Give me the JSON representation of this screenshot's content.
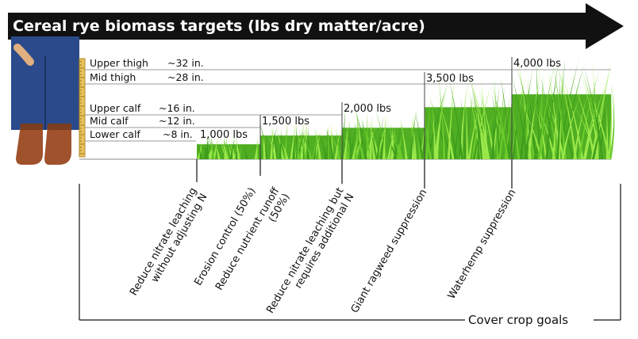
{
  "title": "Cereal rye biomass targets  (lbs dry matter/acre)",
  "height_markers": [
    {
      "label": "Upper thigh",
      "value": "~32 in."
    },
    {
      "label": "Mid thigh",
      "value": "~28 in."
    },
    {
      "label": "Upper calf",
      "value": "~16 in."
    },
    {
      "label": "Mid calf",
      "value": "~12 in."
    },
    {
      "label": "Lower calf",
      "value": "~8 in."
    }
  ],
  "biomass_targets": [
    "1,000 lbs",
    "1,500 lbs",
    "2,000 lbs",
    "3,500 lbs",
    "4,000 lbs"
  ],
  "goals": [
    "Reduce nitrate leaching\nwithout adjusting N",
    "Erosion control (50%)",
    "Reduce nutrient runoff\n(50%)",
    "Reduce nitrate leaching but\nrequires additional N",
    "Giant ragweed suppression",
    "Waterhemp suppression"
  ],
  "goals_axis_label": "Cover crop goals",
  "colors": {
    "arrow": "#111111",
    "grass_light": "#8fdc3a",
    "grass_dark": "#3a9a1a",
    "jeans": "#2b4a8b",
    "boots": "#a0522d",
    "ruler": "#e8c25a"
  }
}
